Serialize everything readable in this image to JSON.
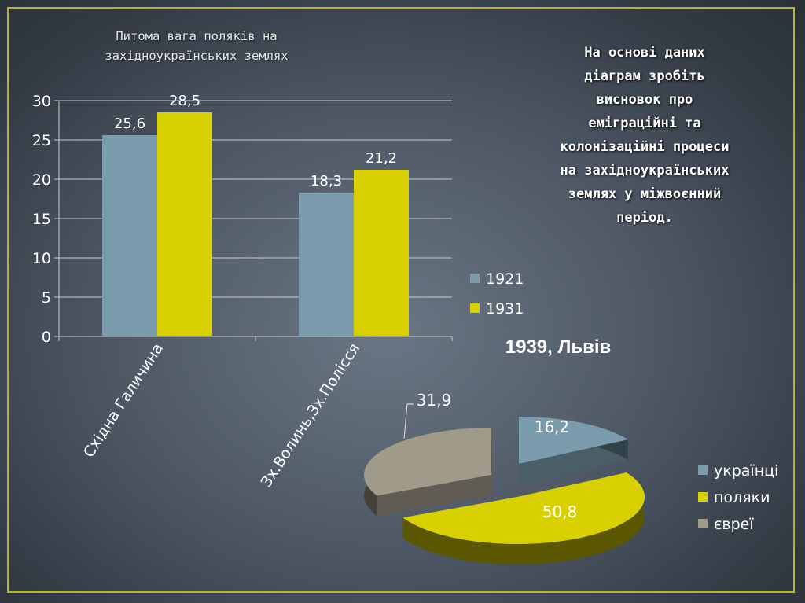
{
  "slide": {
    "bar_title": "Питома вага поляків на\nзахідноукраїнських землях",
    "task_text": "На основі даних\nдіаграм зробіть\nвисновок про\nеміграційні та\nколонізаційні процеси\nна західноукраїнських\nземлях у міжвоєнний\nперіод.",
    "pie_title": "1939, Львів"
  },
  "chart_data": [
    {
      "type": "bar",
      "title": "Питома вага поляків на західноукраїнських землях",
      "categories": [
        "Східна Галичина",
        "Зх.Волинь,Зх.Полісся"
      ],
      "series": [
        {
          "name": "1921",
          "values": [
            25.6,
            18.3
          ],
          "labels": [
            "25,6",
            "18,3"
          ],
          "color": "#7a9cac"
        },
        {
          "name": "1931",
          "values": [
            28.5,
            21.2
          ],
          "labels": [
            "28,5",
            "21,2"
          ],
          "color": "#d8d000"
        }
      ],
      "ylim": [
        0,
        30
      ],
      "yticks": [
        0,
        5,
        10,
        15,
        20,
        25,
        30
      ],
      "grid": true,
      "legend": "right"
    },
    {
      "type": "pie",
      "title": "1939, Львів",
      "slices": [
        {
          "name": "українці",
          "value": 16.2,
          "label": "16,2",
          "color": "#7a9cac"
        },
        {
          "name": "поляки",
          "value": 50.8,
          "label": "50,8",
          "color": "#d8d000"
        },
        {
          "name": "євреї",
          "value": 31.9,
          "label": "31,9",
          "color": "#a09a8a"
        }
      ],
      "legend": "right"
    }
  ]
}
